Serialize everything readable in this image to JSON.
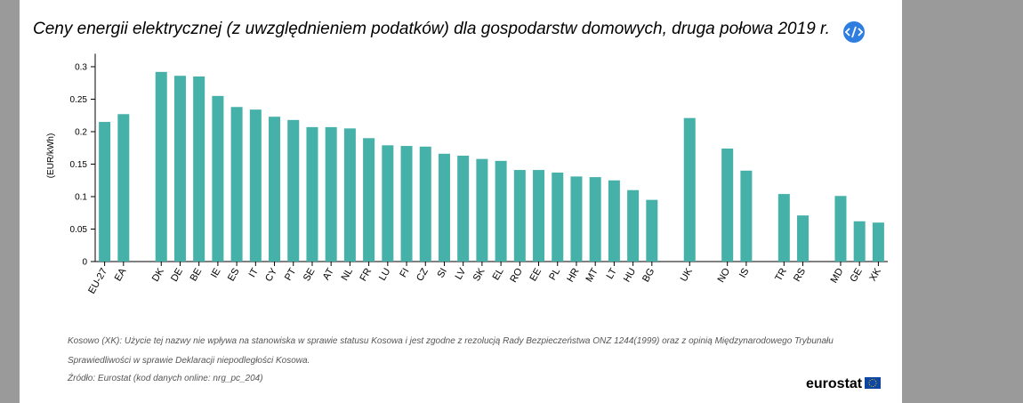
{
  "chart_data": {
    "type": "bar",
    "title": "Ceny energii elektrycznej (z uwzględnieniem podatków) dla gospodarstw domowych, druga połowa 2019 r.",
    "y_label": "(EUR/kWh)",
    "categories": [
      "EU-27",
      "EA",
      null,
      "DK",
      "DE",
      "BE",
      "IE",
      "ES",
      "IT",
      "CY",
      "PT",
      "SE",
      "AT",
      "NL",
      "FR",
      "LU",
      "FI",
      "CZ",
      "SI",
      "LV",
      "SK",
      "EL",
      "RO",
      "EE",
      "PL",
      "HR",
      "MT",
      "LT",
      "HU",
      "BG",
      null,
      "UK",
      null,
      "NO",
      "IS",
      null,
      "TR",
      "RS",
      null,
      "MD",
      "GE",
      "XK"
    ],
    "values": [
      0.215,
      0.227,
      null,
      0.292,
      0.286,
      0.285,
      0.255,
      0.238,
      0.234,
      0.223,
      0.218,
      0.207,
      0.207,
      0.205,
      0.19,
      0.179,
      0.178,
      0.177,
      0.166,
      0.163,
      0.158,
      0.155,
      0.141,
      0.141,
      0.137,
      0.131,
      0.13,
      0.125,
      0.11,
      0.095,
      null,
      0.221,
      null,
      0.174,
      0.14,
      null,
      0.104,
      0.071,
      null,
      0.101,
      0.062,
      0.06
    ],
    "color": "#46b1a9",
    "ylim": [
      0,
      0.32
    ],
    "yticks": [
      0,
      0.05,
      0.1,
      0.15,
      0.2,
      0.25,
      0.3
    ],
    "notes": [
      "Kosowo (XK): Użycie tej nazwy nie wpływa na stanowiska w sprawie statusu Kosowa i jest zgodne z rezolucją Rady Bezpieczeństwa ONZ 1244(1999) oraz z opinią Międzynarodowego Trybunału",
      "Sprawiedliwości w sprawie Deklaracji niepodległości Kosowa.",
      "Źródło: Eurostat (kod danych online: nrg_pc_204)"
    ],
    "logo": "eurostat"
  }
}
